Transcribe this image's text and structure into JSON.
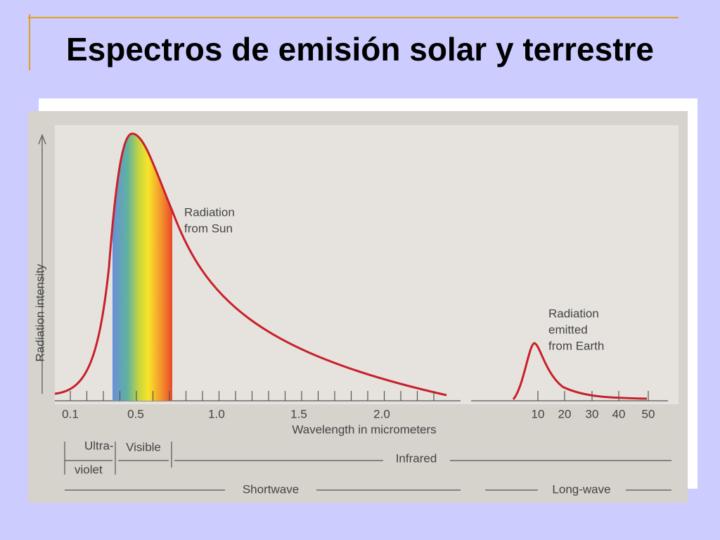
{
  "slide": {
    "title": "Espectros de emisión solar y terrestre"
  },
  "figure": {
    "y_label": "Radiation intensity",
    "x_label": "Wavelength in micrometers",
    "x_ticks_short": [
      "0.1",
      "0.5",
      "1.0",
      "1.5",
      "2.0"
    ],
    "x_ticks_long": [
      "10",
      "20",
      "30",
      "40",
      "50"
    ],
    "sun_label": [
      "Radiation",
      "from Sun"
    ],
    "earth_label": [
      "Radiation",
      "emitted",
      "from Earth"
    ],
    "bands": {
      "ultraviolet": [
        "Ultra-",
        "violet"
      ],
      "visible": "Visible",
      "infrared": "Infrared",
      "shortwave": "Shortwave",
      "longwave": "Long-wave"
    }
  }
}
